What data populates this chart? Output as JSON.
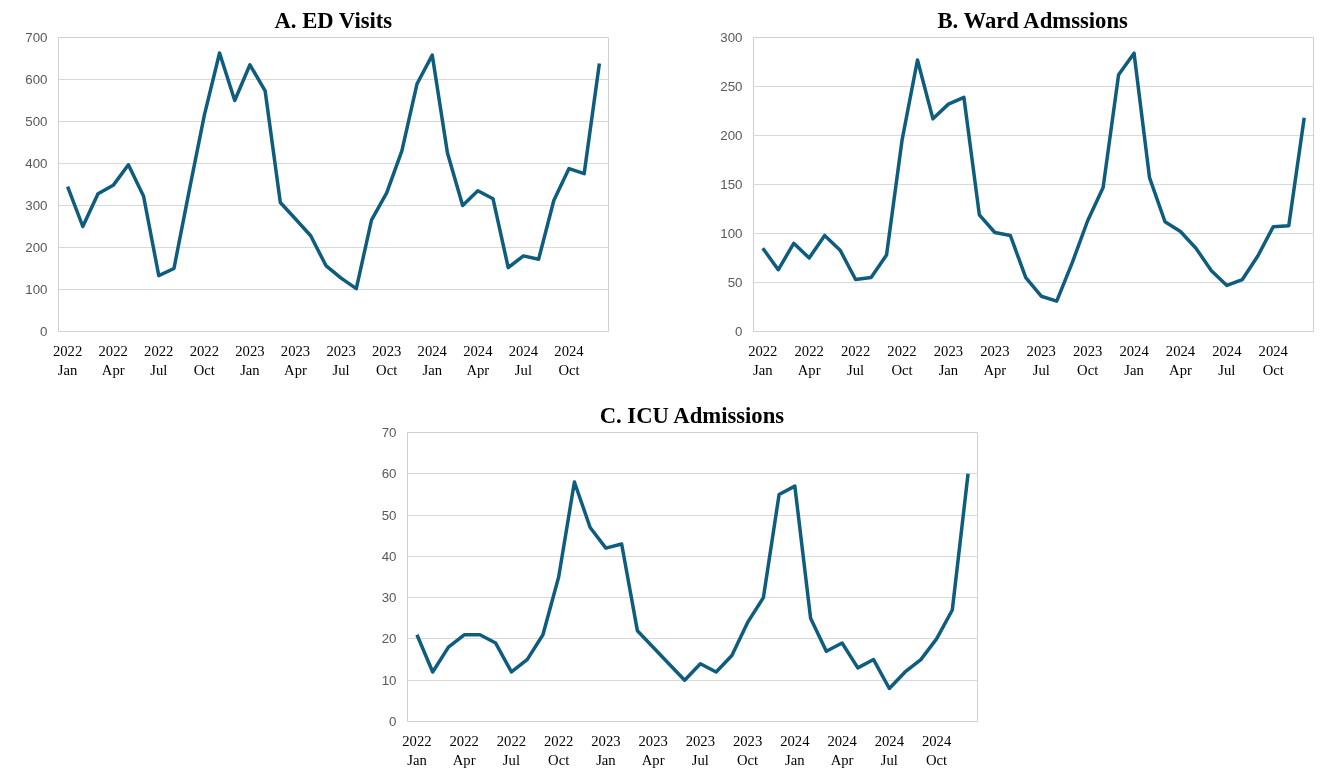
{
  "chart_data": [
    {
      "type": "line",
      "title": "A. ED Visits",
      "categories": [
        "2022\nJan",
        null,
        null,
        "2022\nApr",
        null,
        null,
        "2022\nJul",
        null,
        null,
        "2022\nOct",
        null,
        null,
        "2023\nJan",
        null,
        null,
        "2023\nApr",
        null,
        null,
        "2023\nJul",
        null,
        null,
        "2023\nOct",
        null,
        null,
        "2024\nJan",
        null,
        null,
        "2024\nApr",
        null,
        null,
        "2024\nJul",
        null,
        null,
        "2024\nOct",
        null,
        null
      ],
      "series": [
        {
          "color": "#0e5d7e",
          "values": [
            345,
            250,
            328,
            348,
            397,
            322,
            133,
            150,
            335,
            515,
            663,
            550,
            635,
            573,
            307,
            268,
            228,
            157,
            127,
            102,
            265,
            330,
            430,
            590,
            658,
            425,
            300,
            335,
            316,
            152,
            180,
            172,
            312,
            388,
            376,
            638
          ]
        }
      ],
      "ylim": [
        0,
        700
      ],
      "yticks": [
        0,
        100,
        200,
        300,
        400,
        500,
        600,
        700
      ],
      "grid": "y"
    },
    {
      "type": "line",
      "title": "B. Ward Admssions",
      "categories": [
        "2022\nJan",
        null,
        null,
        "2022\nApr",
        null,
        null,
        "2022\nJul",
        null,
        null,
        "2022\nOct",
        null,
        null,
        "2023\nJan",
        null,
        null,
        "2023\nApr",
        null,
        null,
        "2023\nJul",
        null,
        null,
        "2023\nOct",
        null,
        null,
        "2024\nJan",
        null,
        null,
        "2024\nApr",
        null,
        null,
        "2024\nJul",
        null,
        null,
        "2024\nOct",
        null,
        null
      ],
      "series": [
        {
          "color": "#0e5d7e",
          "values": [
            85,
            63,
            90,
            75,
            98,
            83,
            53,
            55,
            78,
            195,
            277,
            217,
            232,
            239,
            119,
            101,
            98,
            55,
            36,
            31,
            70,
            113,
            147,
            262,
            284,
            157,
            112,
            102,
            85,
            62,
            47,
            53,
            77,
            107,
            108,
            218
          ]
        }
      ],
      "ylim": [
        0,
        300
      ],
      "yticks": [
        0,
        50,
        100,
        150,
        200,
        250,
        300
      ],
      "grid": "y"
    },
    {
      "type": "line",
      "title": "C. ICU Admissions",
      "categories": [
        "2022\nJan",
        null,
        null,
        "2022\nApr",
        null,
        null,
        "2022\nJul",
        null,
        null,
        "2022\nOct",
        null,
        null,
        "2023\nJan",
        null,
        null,
        "2023\nApr",
        null,
        null,
        "2023\nJul",
        null,
        null,
        "2023\nOct",
        null,
        null,
        "2024\nJan",
        null,
        null,
        "2024\nApr",
        null,
        null,
        "2024\nJul",
        null,
        null,
        "2024\nOct",
        null,
        null
      ],
      "series": [
        {
          "color": "#0e5d7e",
          "values": [
            21,
            12,
            18,
            21,
            21,
            19,
            12,
            15,
            21,
            35,
            58,
            47,
            42,
            43,
            22,
            18,
            14,
            10,
            14,
            12,
            16,
            24,
            30,
            55,
            57,
            25,
            17,
            19,
            13,
            15,
            8,
            12,
            15,
            20,
            27,
            60
          ]
        }
      ],
      "ylim": [
        0,
        70
      ],
      "yticks": [
        0,
        10,
        20,
        30,
        40,
        50,
        60,
        70
      ],
      "grid": "y"
    }
  ]
}
